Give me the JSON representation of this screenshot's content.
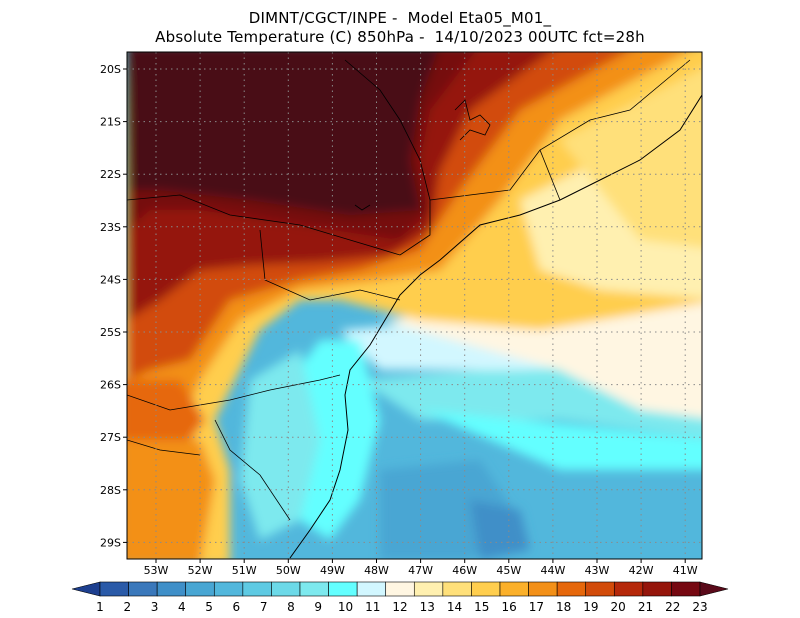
{
  "header": {
    "line1": "DIMNT/CGCT/INPE -  Model Eta05_M01_",
    "line2": "Absolute Temperature (C) 850hPa -  14/10/2023 00UTC fct=28h"
  },
  "map": {
    "lat_labels": [
      "20S",
      "21S",
      "22S",
      "23S",
      "24S",
      "25S",
      "26S",
      "27S",
      "28S",
      "29S"
    ],
    "lon_labels": [
      "53W",
      "52W",
      "51W",
      "50W",
      "49W",
      "48W",
      "47W",
      "46W",
      "45W",
      "44W",
      "43W",
      "42W",
      "41W"
    ],
    "grid": true
  },
  "colorbar": {
    "labels": [
      "1",
      "2",
      "3",
      "4",
      "5",
      "6",
      "7",
      "8",
      "9",
      "10",
      "11",
      "12",
      "13",
      "14",
      "15",
      "16",
      "17",
      "18",
      "19",
      "20",
      "21",
      "22",
      "23"
    ],
    "colors": [
      "#1d3f8f",
      "#2a5aa8",
      "#3a78bb",
      "#3f8fc8",
      "#48a6d3",
      "#52b7dc",
      "#5ecae3",
      "#6cd9e8",
      "#7de9ee",
      "#63ffff",
      "#d2f7ff",
      "#fff6e2",
      "#fff0b0",
      "#ffe07a",
      "#ffce4e",
      "#fbb02a",
      "#f39018",
      "#e6670b",
      "#d24b0a",
      "#b5280a",
      "#95150b",
      "#760811",
      "#5a0a1a"
    ]
  }
}
